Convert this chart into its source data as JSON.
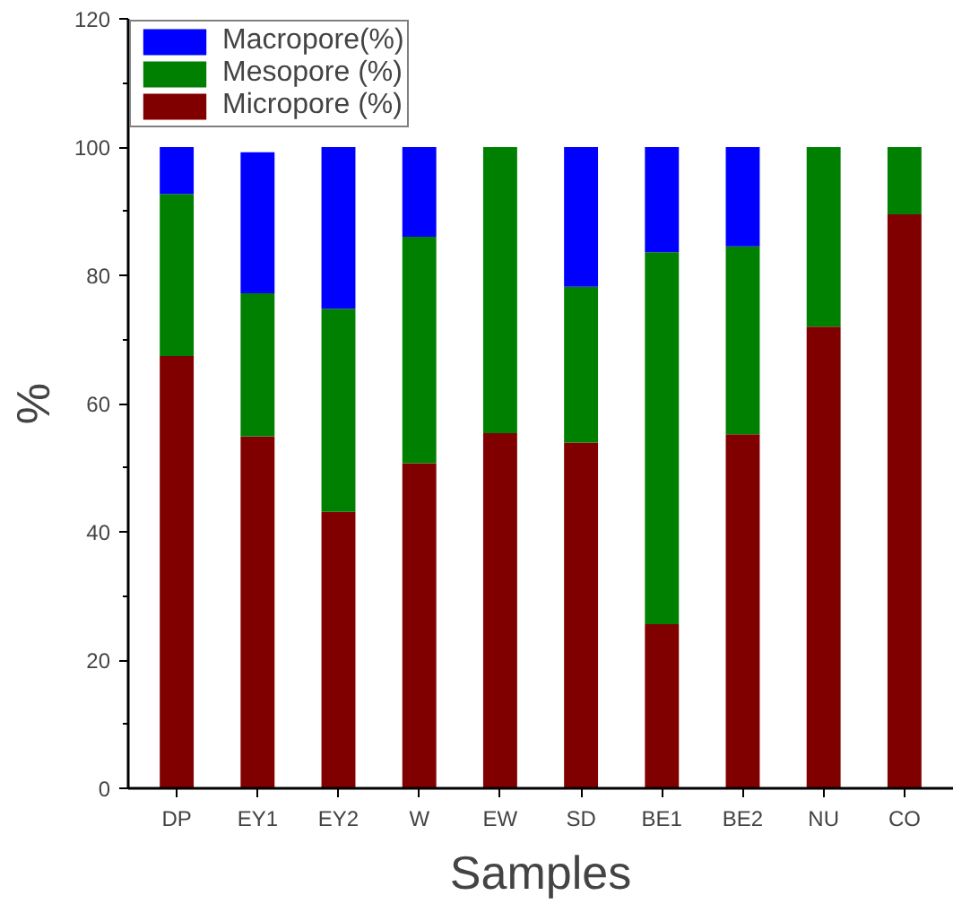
{
  "chart_data": {
    "type": "bar",
    "stacked": true,
    "xlabel": "Samples",
    "ylabel": "%",
    "categories": [
      "DP",
      "EY1",
      "EY2",
      "W",
      "EW",
      "SD",
      "BE1",
      "BE2",
      "NU",
      "CO"
    ],
    "series": [
      {
        "name": "Micropore (%)",
        "color": "#800000",
        "values": [
          67.4,
          54.9,
          43.1,
          50.7,
          55.4,
          53.9,
          25.6,
          55.2,
          72.0,
          89.5
        ]
      },
      {
        "name": "Mesopore (%)",
        "color": "#008000",
        "values": [
          25.3,
          22.3,
          31.7,
          35.3,
          44.6,
          24.3,
          58.0,
          29.3,
          28.0,
          10.5
        ]
      },
      {
        "name": "Macropore(%)",
        "color": "#0000ff",
        "values": [
          7.3,
          22.0,
          25.2,
          14.0,
          0,
          21.8,
          16.4,
          15.5,
          0,
          0
        ]
      }
    ],
    "ylim": [
      0,
      120
    ],
    "yticks": [
      0,
      20,
      40,
      60,
      80,
      100,
      120
    ],
    "grid": false,
    "legend": "top left"
  }
}
